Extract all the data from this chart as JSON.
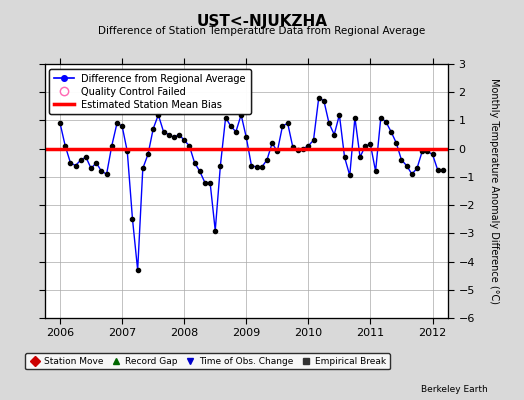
{
  "title": "UST<-NJUKZHA",
  "subtitle": "Difference of Station Temperature Data from Regional Average",
  "ylabel_right": "Monthly Temperature Anomaly Difference (°C)",
  "xlim": [
    2005.75,
    2012.25
  ],
  "ylim": [
    -6,
    3
  ],
  "yticks": [
    -6,
    -5,
    -4,
    -3,
    -2,
    -1,
    0,
    1,
    2,
    3
  ],
  "xticks": [
    2006,
    2007,
    2008,
    2009,
    2010,
    2011,
    2012
  ],
  "bias_line_y": 0.0,
  "background_color": "#d9d9d9",
  "plot_bg_color": "#ffffff",
  "line_color": "#0000ff",
  "bias_color": "#ff0000",
  "marker_color": "#000000",
  "berkeley_earth_text": "Berkeley Earth",
  "times": [
    2006.0,
    2006.083,
    2006.167,
    2006.25,
    2006.333,
    2006.417,
    2006.5,
    2006.583,
    2006.667,
    2006.75,
    2006.833,
    2006.917,
    2007.0,
    2007.083,
    2007.167,
    2007.25,
    2007.333,
    2007.417,
    2007.5,
    2007.583,
    2007.667,
    2007.75,
    2007.833,
    2007.917,
    2008.0,
    2008.083,
    2008.167,
    2008.25,
    2008.333,
    2008.417,
    2008.5,
    2008.583,
    2008.667,
    2008.75,
    2008.833,
    2008.917,
    2009.0,
    2009.083,
    2009.167,
    2009.25,
    2009.333,
    2009.417,
    2009.5,
    2009.583,
    2009.667,
    2009.75,
    2009.833,
    2009.917,
    2010.0,
    2010.083,
    2010.167,
    2010.25,
    2010.333,
    2010.417,
    2010.5,
    2010.583,
    2010.667,
    2010.75,
    2010.833,
    2010.917,
    2011.0,
    2011.083,
    2011.167,
    2011.25,
    2011.333,
    2011.417,
    2011.5,
    2011.583,
    2011.667,
    2011.75,
    2011.833,
    2011.917,
    2012.0,
    2012.083,
    2012.167
  ],
  "values": [
    0.9,
    0.1,
    -0.5,
    -0.6,
    -0.4,
    -0.3,
    -0.7,
    -0.5,
    -0.8,
    -0.9,
    0.1,
    0.9,
    0.8,
    -0.1,
    -2.5,
    -4.3,
    -0.7,
    -0.2,
    0.7,
    1.2,
    0.6,
    0.5,
    0.4,
    0.5,
    0.3,
    0.1,
    -0.5,
    -0.8,
    -1.2,
    -1.2,
    -2.9,
    -0.6,
    1.1,
    0.8,
    0.6,
    1.2,
    0.4,
    -0.6,
    -0.65,
    -0.65,
    -0.4,
    0.2,
    -0.1,
    0.8,
    0.9,
    0.05,
    -0.05,
    0.0,
    0.1,
    0.3,
    1.8,
    1.7,
    0.9,
    0.5,
    1.2,
    -0.3,
    -0.95,
    1.1,
    -0.3,
    0.1,
    0.15,
    -0.8,
    1.1,
    0.95,
    0.6,
    0.2,
    -0.4,
    -0.6,
    -0.9,
    -0.7,
    -0.1,
    -0.1,
    -0.2,
    -0.75,
    -0.75
  ]
}
